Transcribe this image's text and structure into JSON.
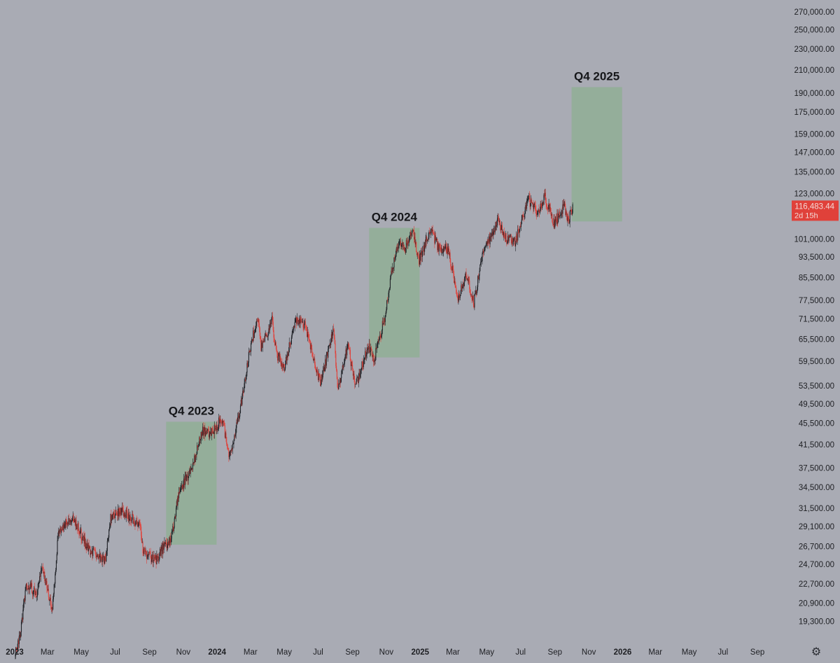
{
  "chart_data": {
    "type": "candlestick",
    "colors": {
      "background": "#a9abb4",
      "up": "#1f2126",
      "down": "#e0413a",
      "zone": "#93ae98",
      "price_label_bg": "#e0413a",
      "price_label_text": "#f3d9d6",
      "axis_text": "#1e1f23"
    },
    "y_scale": "log",
    "ylim": [
      18700,
      270000
    ],
    "y_ticks": [
      "270,000.00",
      "250,000.00",
      "230,000.00",
      "210,000.00",
      "190,000.00",
      "175,000.00",
      "159,000.00",
      "147,000.00",
      "135,000.00",
      "123,000.00",
      "101,000.00",
      "93,500.00",
      "85,500.00",
      "77,500.00",
      "71,500.00",
      "65,500.00",
      "59,500.00",
      "53,500.00",
      "49,500.00",
      "45,500.00",
      "41,500.00",
      "37,500.00",
      "34,500.00",
      "31,500.00",
      "29,100.00",
      "26,700.00",
      "24,700.00",
      "22,700.00",
      "20,900.00",
      "19,300.00"
    ],
    "x_range": [
      "2023-01-01",
      "2026-10-15"
    ],
    "x_ticks": [
      {
        "label": "2023",
        "date": "2023-01-01",
        "bold": true
      },
      {
        "label": "Mar",
        "date": "2023-03-01",
        "bold": false
      },
      {
        "label": "May",
        "date": "2023-05-01",
        "bold": false
      },
      {
        "label": "Jul",
        "date": "2023-07-01",
        "bold": false
      },
      {
        "label": "Sep",
        "date": "2023-09-01",
        "bold": false
      },
      {
        "label": "Nov",
        "date": "2023-11-01",
        "bold": false
      },
      {
        "label": "2024",
        "date": "2024-01-01",
        "bold": true
      },
      {
        "label": "Mar",
        "date": "2024-03-01",
        "bold": false
      },
      {
        "label": "May",
        "date": "2024-05-01",
        "bold": false
      },
      {
        "label": "Jul",
        "date": "2024-07-01",
        "bold": false
      },
      {
        "label": "Sep",
        "date": "2024-09-01",
        "bold": false
      },
      {
        "label": "Nov",
        "date": "2024-11-01",
        "bold": false
      },
      {
        "label": "2025",
        "date": "2025-01-01",
        "bold": true
      },
      {
        "label": "Mar",
        "date": "2025-03-01",
        "bold": false
      },
      {
        "label": "May",
        "date": "2025-05-01",
        "bold": false
      },
      {
        "label": "Jul",
        "date": "2025-07-01",
        "bold": false
      },
      {
        "label": "Sep",
        "date": "2025-09-01",
        "bold": false
      },
      {
        "label": "Nov",
        "date": "2025-11-01",
        "bold": false
      },
      {
        "label": "2026",
        "date": "2026-01-01",
        "bold": true
      },
      {
        "label": "Mar",
        "date": "2026-03-01",
        "bold": false
      },
      {
        "label": "May",
        "date": "2026-05-01",
        "bold": false
      },
      {
        "label": "Jul",
        "date": "2026-07-01",
        "bold": false
      },
      {
        "label": "Sep",
        "date": "2026-09-01",
        "bold": false
      }
    ],
    "zones": [
      {
        "label": "Q4 2023",
        "start": "2023-10-01",
        "end": "2023-12-31",
        "low": 26900,
        "high": 45800
      },
      {
        "label": "Q4 2024",
        "start": "2024-10-01",
        "end": "2024-12-31",
        "low": 60500,
        "high": 106000
      },
      {
        "label": "Q4 2025",
        "start": "2025-10-01",
        "end": "2025-12-31",
        "low": 109000,
        "high": 195000
      }
    ],
    "last_price": {
      "price": "116,483.44",
      "value": 116483.44,
      "countdown": "2d 15h"
    },
    "anchors": [
      [
        "2023-01-01",
        16600
      ],
      [
        "2023-01-12",
        18500
      ],
      [
        "2023-01-22",
        22700
      ],
      [
        "2023-02-10",
        21800
      ],
      [
        "2023-02-20",
        24500
      ],
      [
        "2023-03-10",
        20200
      ],
      [
        "2023-03-20",
        28000
      ],
      [
        "2023-04-14",
        30500
      ],
      [
        "2023-05-12",
        26500
      ],
      [
        "2023-06-14",
        25100
      ],
      [
        "2023-06-22",
        30000
      ],
      [
        "2023-07-13",
        31300
      ],
      [
        "2023-08-15",
        29200
      ],
      [
        "2023-08-20",
        26100
      ],
      [
        "2023-09-11",
        25100
      ],
      [
        "2023-09-30",
        27000
      ],
      [
        "2023-10-10",
        27400
      ],
      [
        "2023-10-24",
        34000
      ],
      [
        "2023-11-15",
        37000
      ],
      [
        "2023-12-05",
        44000
      ],
      [
        "2023-12-20",
        43500
      ],
      [
        "2024-01-10",
        46500
      ],
      [
        "2024-01-23",
        39500
      ],
      [
        "2024-02-10",
        47500
      ],
      [
        "2024-02-28",
        62000
      ],
      [
        "2024-03-14",
        72000
      ],
      [
        "2024-03-20",
        63000
      ],
      [
        "2024-04-09",
        71000
      ],
      [
        "2024-04-17",
        61500
      ],
      [
        "2024-05-01",
        58000
      ],
      [
        "2024-05-21",
        70500
      ],
      [
        "2024-06-07",
        69500
      ],
      [
        "2024-07-05",
        54000
      ],
      [
        "2024-07-29",
        68500
      ],
      [
        "2024-08-05",
        52000
      ],
      [
        "2024-08-24",
        64000
      ],
      [
        "2024-09-06",
        53000
      ],
      [
        "2024-09-30",
        64000
      ],
      [
        "2024-10-10",
        60000
      ],
      [
        "2024-10-29",
        72000
      ],
      [
        "2024-11-12",
        89000
      ],
      [
        "2024-11-22",
        99000
      ],
      [
        "2024-12-05",
        97000
      ],
      [
        "2024-12-17",
        106000
      ],
      [
        "2024-12-30",
        92000
      ],
      [
        "2025-01-20",
        106000
      ],
      [
        "2025-02-03",
        97000
      ],
      [
        "2025-02-20",
        97000
      ],
      [
        "2025-03-10",
        78000
      ],
      [
        "2025-03-25",
        87000
      ],
      [
        "2025-04-08",
        76500
      ],
      [
        "2025-04-22",
        93500
      ],
      [
        "2025-05-22",
        110000
      ],
      [
        "2025-06-05",
        101000
      ],
      [
        "2025-06-22",
        100000
      ],
      [
        "2025-07-02",
        108000
      ],
      [
        "2025-07-14",
        120000
      ],
      [
        "2025-08-02",
        113000
      ],
      [
        "2025-08-14",
        121000
      ],
      [
        "2025-08-31",
        108000
      ],
      [
        "2025-09-18",
        117000
      ],
      [
        "2025-09-25",
        109000
      ],
      [
        "2025-10-03",
        116483
      ]
    ]
  }
}
